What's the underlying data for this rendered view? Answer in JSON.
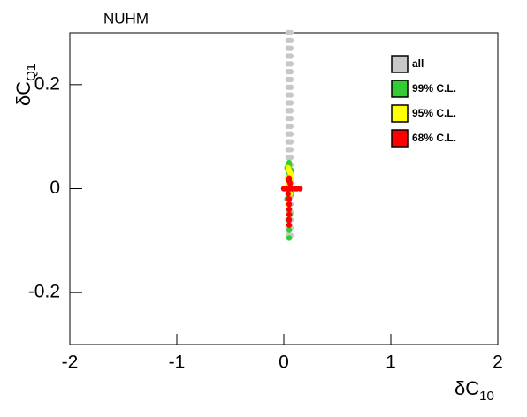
{
  "chart_data": {
    "type": "scatter",
    "title": "NUHM",
    "xlabel": {
      "text": "δC",
      "sub": "10"
    },
    "ylabel": {
      "text": "δC",
      "sub": "Q1"
    },
    "xlim": [
      -2,
      2
    ],
    "ylim": [
      -0.3,
      0.3
    ],
    "xticks": [
      -2,
      -1,
      0,
      1,
      2
    ],
    "yticks": [
      -0.2,
      0,
      0.2
    ],
    "legend": "top-right",
    "series": [
      {
        "name": "all",
        "color": "#c8c8c8",
        "x": [
          0.04,
          0.04,
          0.04,
          0.04,
          0.04,
          0.04,
          0.04,
          0.04,
          0.04,
          0.04,
          0.04,
          0.04,
          0.04,
          0.04,
          0.04,
          0.04,
          0.04,
          0.04,
          0.04,
          0.04,
          0.04,
          0.04,
          0.04,
          0.04,
          0.04,
          0.04,
          0.04,
          0.065,
          0.065,
          0.065,
          0.065,
          0.065,
          0.065,
          0.065,
          0.065,
          0.065,
          0.065,
          0.065,
          0.065,
          0.065,
          0.065,
          0.065,
          0.065,
          0.065,
          0.065,
          0.065,
          0.065,
          0.065,
          0.065,
          0.065,
          0.065,
          0.065,
          0.065,
          0.065
        ],
        "y": [
          -0.09,
          -0.075,
          -0.06,
          -0.045,
          -0.03,
          -0.015,
          0,
          0.015,
          0.03,
          0.045,
          0.06,
          0.075,
          0.09,
          0.105,
          0.12,
          0.135,
          0.15,
          0.165,
          0.18,
          0.195,
          0.21,
          0.225,
          0.24,
          0.255,
          0.27,
          0.285,
          0.3,
          -0.09,
          -0.075,
          -0.06,
          -0.045,
          -0.03,
          -0.015,
          0,
          0.015,
          0.03,
          0.045,
          0.06,
          0.075,
          0.09,
          0.105,
          0.12,
          0.135,
          0.15,
          0.165,
          0.18,
          0.195,
          0.21,
          0.225,
          0.24,
          0.255,
          0.27,
          0.285,
          0.3
        ]
      },
      {
        "name": "99% C.L.",
        "color": "#33cc33",
        "x": [
          0.05,
          0.05,
          0.04,
          0.06,
          0.03,
          0.07,
          0.04,
          0.06,
          0.05,
          0.03,
          0.07,
          0.05,
          0.05,
          0.05
        ],
        "y": [
          -0.095,
          -0.08,
          -0.06,
          -0.05,
          -0.02,
          -0.01,
          0.01,
          0.02,
          0.03,
          0.04,
          0.035,
          0.045,
          0.05,
          -0.04
        ]
      },
      {
        "name": "95% C.L.",
        "color": "#ffff00",
        "x": [
          0.05,
          0.04,
          0.06,
          0.05,
          0.03,
          0.07,
          0.05,
          0.04,
          0.06,
          0.1
        ],
        "y": [
          -0.05,
          -0.03,
          -0.01,
          0.01,
          0.02,
          0.02,
          0.035,
          0.04,
          0.03,
          0
        ]
      },
      {
        "name": "68% C.L.",
        "color": "#ff0000",
        "x": [
          0,
          0.02,
          0.04,
          0.06,
          0.08,
          0.1,
          0.12,
          0.15,
          0.05,
          0.05,
          0.05,
          0.05,
          0.05,
          0.05,
          0.04,
          0.06,
          0.05,
          0.05
        ],
        "y": [
          0,
          0,
          0,
          0,
          0,
          0,
          0,
          0,
          -0.07,
          -0.06,
          -0.05,
          -0.04,
          -0.03,
          -0.02,
          -0.01,
          0.01,
          0.02,
          0.015
        ]
      }
    ]
  }
}
